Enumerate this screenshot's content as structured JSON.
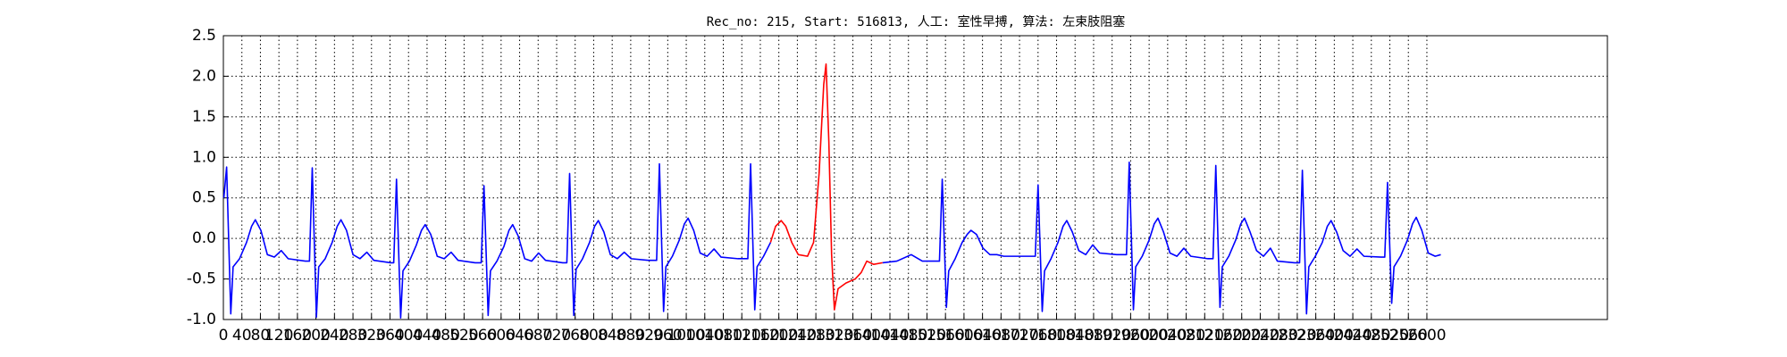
{
  "chart_data": {
    "type": "line",
    "title": "Rec_no: 215, Start: 516813, 人工: 室性早搏, 算法: 左束肢阻塞",
    "xlim": [
      0,
      2990
    ],
    "ylim": [
      -1,
      2.5
    ],
    "xticks": [
      0,
      40,
      80,
      120,
      160,
      200,
      240,
      280,
      320,
      360,
      400,
      440,
      480,
      520,
      560,
      600,
      640,
      680,
      720,
      760,
      800,
      840,
      880,
      920,
      960,
      1000,
      1040,
      1080,
      1120,
      1160,
      1200,
      1240,
      1280,
      1320,
      1360,
      1400,
      1440,
      1480,
      1520,
      1560,
      1600,
      1640,
      1680,
      1720,
      1760,
      1800,
      1840,
      1880,
      1920,
      1960,
      2000,
      2040,
      2080,
      2120,
      2160,
      2200,
      2240,
      2280,
      2320,
      2360,
      2400,
      2440,
      2480,
      2520,
      2560,
      2600
    ],
    "yticks": [
      {
        "value": -1,
        "label": "-1.0"
      },
      -0.5,
      {
        "value": 0,
        "label": "0.0"
      },
      0.5,
      {
        "value": 1,
        "label": "1.0"
      },
      1.5,
      {
        "value": 2,
        "label": "2.0"
      },
      2.5
    ],
    "grid": true,
    "series": [
      {
        "color": "#0000ff",
        "x": [
          1,
          7,
          16,
          21,
          35,
          50,
          61,
          69,
          81,
          95,
          110,
          125,
          140,
          177,
          186,
          192,
          201,
          206,
          220,
          235,
          246,
          254,
          266,
          280,
          295,
          310,
          325,
          362,
          368,
          374,
          383,
          388,
          402,
          417,
          428,
          436,
          448,
          462,
          477,
          492,
          507,
          544,
          557,
          563,
          572,
          577,
          591,
          606,
          617,
          625,
          637,
          651,
          666,
          681,
          696,
          733,
          742,
          748,
          757,
          762,
          776,
          791,
          802,
          810,
          822,
          836,
          851,
          866,
          881,
          918,
          936,
          942,
          951,
          956,
          970,
          985,
          996,
          1004,
          1016,
          1030,
          1045,
          1060,
          1075,
          1112,
          1133,
          1139,
          1148,
          1153,
          1167,
          1182,
          1183,
          1424,
          1455,
          1486,
          1510,
          1547,
          1553,
          1562,
          1567,
          1581,
          1596,
          1607,
          1615,
          1627,
          1641,
          1656,
          1671,
          1686,
          1723,
          1754,
          1760,
          1769,
          1774,
          1788,
          1803,
          1814,
          1822,
          1834,
          1848,
          1863,
          1878,
          1893,
          1930,
          1951,
          1957,
          1966,
          1971,
          1985,
          2000,
          2011,
          2019,
          2031,
          2045,
          2060,
          2075,
          2090,
          2127,
          2138,
          2144,
          2153,
          2158,
          2172,
          2187,
          2198,
          2206,
          2218,
          2232,
          2247,
          2262,
          2277,
          2314,
          2325,
          2331,
          2340,
          2345,
          2359,
          2374,
          2385,
          2393,
          2405,
          2419,
          2434,
          2449,
          2464,
          2501,
          2509,
          2515,
          2524,
          2529,
          2543,
          2558,
          2569,
          2577,
          2589,
          2603,
          2618,
          2630
        ],
        "values": [
          0.5,
          0.88,
          -0.93,
          -0.35,
          -0.25,
          -0.05,
          0.15,
          0.23,
          0.1,
          -0.2,
          -0.23,
          -0.15,
          -0.25,
          -0.28,
          -0.28,
          0.87,
          -0.97,
          -0.35,
          -0.25,
          -0.05,
          0.15,
          0.23,
          0.1,
          -0.2,
          -0.25,
          -0.17,
          -0.27,
          -0.3,
          -0.3,
          0.73,
          -0.98,
          -0.4,
          -0.28,
          -0.08,
          0.1,
          0.17,
          0.05,
          -0.22,
          -0.25,
          -0.17,
          -0.27,
          -0.3,
          -0.3,
          0.65,
          -0.95,
          -0.4,
          -0.28,
          -0.1,
          0.1,
          0.17,
          0.03,
          -0.25,
          -0.28,
          -0.18,
          -0.27,
          -0.3,
          -0.3,
          0.8,
          -0.95,
          -0.38,
          -0.25,
          -0.05,
          0.15,
          0.22,
          0.08,
          -0.2,
          -0.25,
          -0.17,
          -0.25,
          -0.27,
          -0.27,
          0.92,
          -0.9,
          -0.35,
          -0.22,
          -0.02,
          0.18,
          0.25,
          0.1,
          -0.18,
          -0.22,
          -0.13,
          -0.23,
          -0.25,
          -0.25,
          0.92,
          -0.88,
          -0.35,
          -0.22,
          -0.05,
          null,
          -0.3,
          -0.28,
          -0.2,
          -0.28,
          -0.28,
          0.73,
          -0.85,
          -0.4,
          -0.25,
          -0.05,
          0.05,
          0.1,
          0.05,
          -0.12,
          -0.2,
          -0.2,
          -0.22,
          -0.22,
          -0.22,
          0.66,
          -0.9,
          -0.4,
          -0.25,
          -0.05,
          0.15,
          0.22,
          0.08,
          -0.15,
          -0.2,
          -0.08,
          -0.18,
          -0.2,
          -0.2,
          0.94,
          -0.88,
          -0.35,
          -0.22,
          -0.02,
          0.18,
          0.25,
          0.08,
          -0.18,
          -0.22,
          -0.12,
          -0.22,
          -0.25,
          -0.25,
          0.9,
          -0.85,
          -0.35,
          -0.22,
          -0.02,
          0.18,
          0.25,
          0.08,
          -0.15,
          -0.22,
          -0.12,
          -0.28,
          -0.3,
          -0.3,
          0.84,
          -0.93,
          -0.35,
          -0.22,
          -0.05,
          0.15,
          0.22,
          0.08,
          -0.15,
          -0.22,
          -0.13,
          -0.22,
          -0.23,
          -0.23,
          0.69,
          -0.8,
          -0.35,
          -0.22,
          -0.02,
          0.18,
          0.26,
          0.1,
          -0.18,
          -0.22,
          -0.2
        ]
      },
      {
        "color": "#ff0000",
        "x": [
          1182,
          1193,
          1205,
          1215,
          1228,
          1242,
          1262,
          1275,
          1287,
          1297,
          1302,
          1308,
          1314,
          1320,
          1328,
          1345,
          1365,
          1378,
          1390,
          1405,
          1424
        ],
        "values": [
          -0.05,
          0.15,
          0.22,
          0.15,
          -0.05,
          -0.2,
          -0.22,
          -0.05,
          0.8,
          1.9,
          2.15,
          1.2,
          -0.2,
          -0.88,
          -0.62,
          -0.55,
          -0.5,
          -0.42,
          -0.28,
          -0.32,
          -0.3
        ]
      }
    ]
  }
}
